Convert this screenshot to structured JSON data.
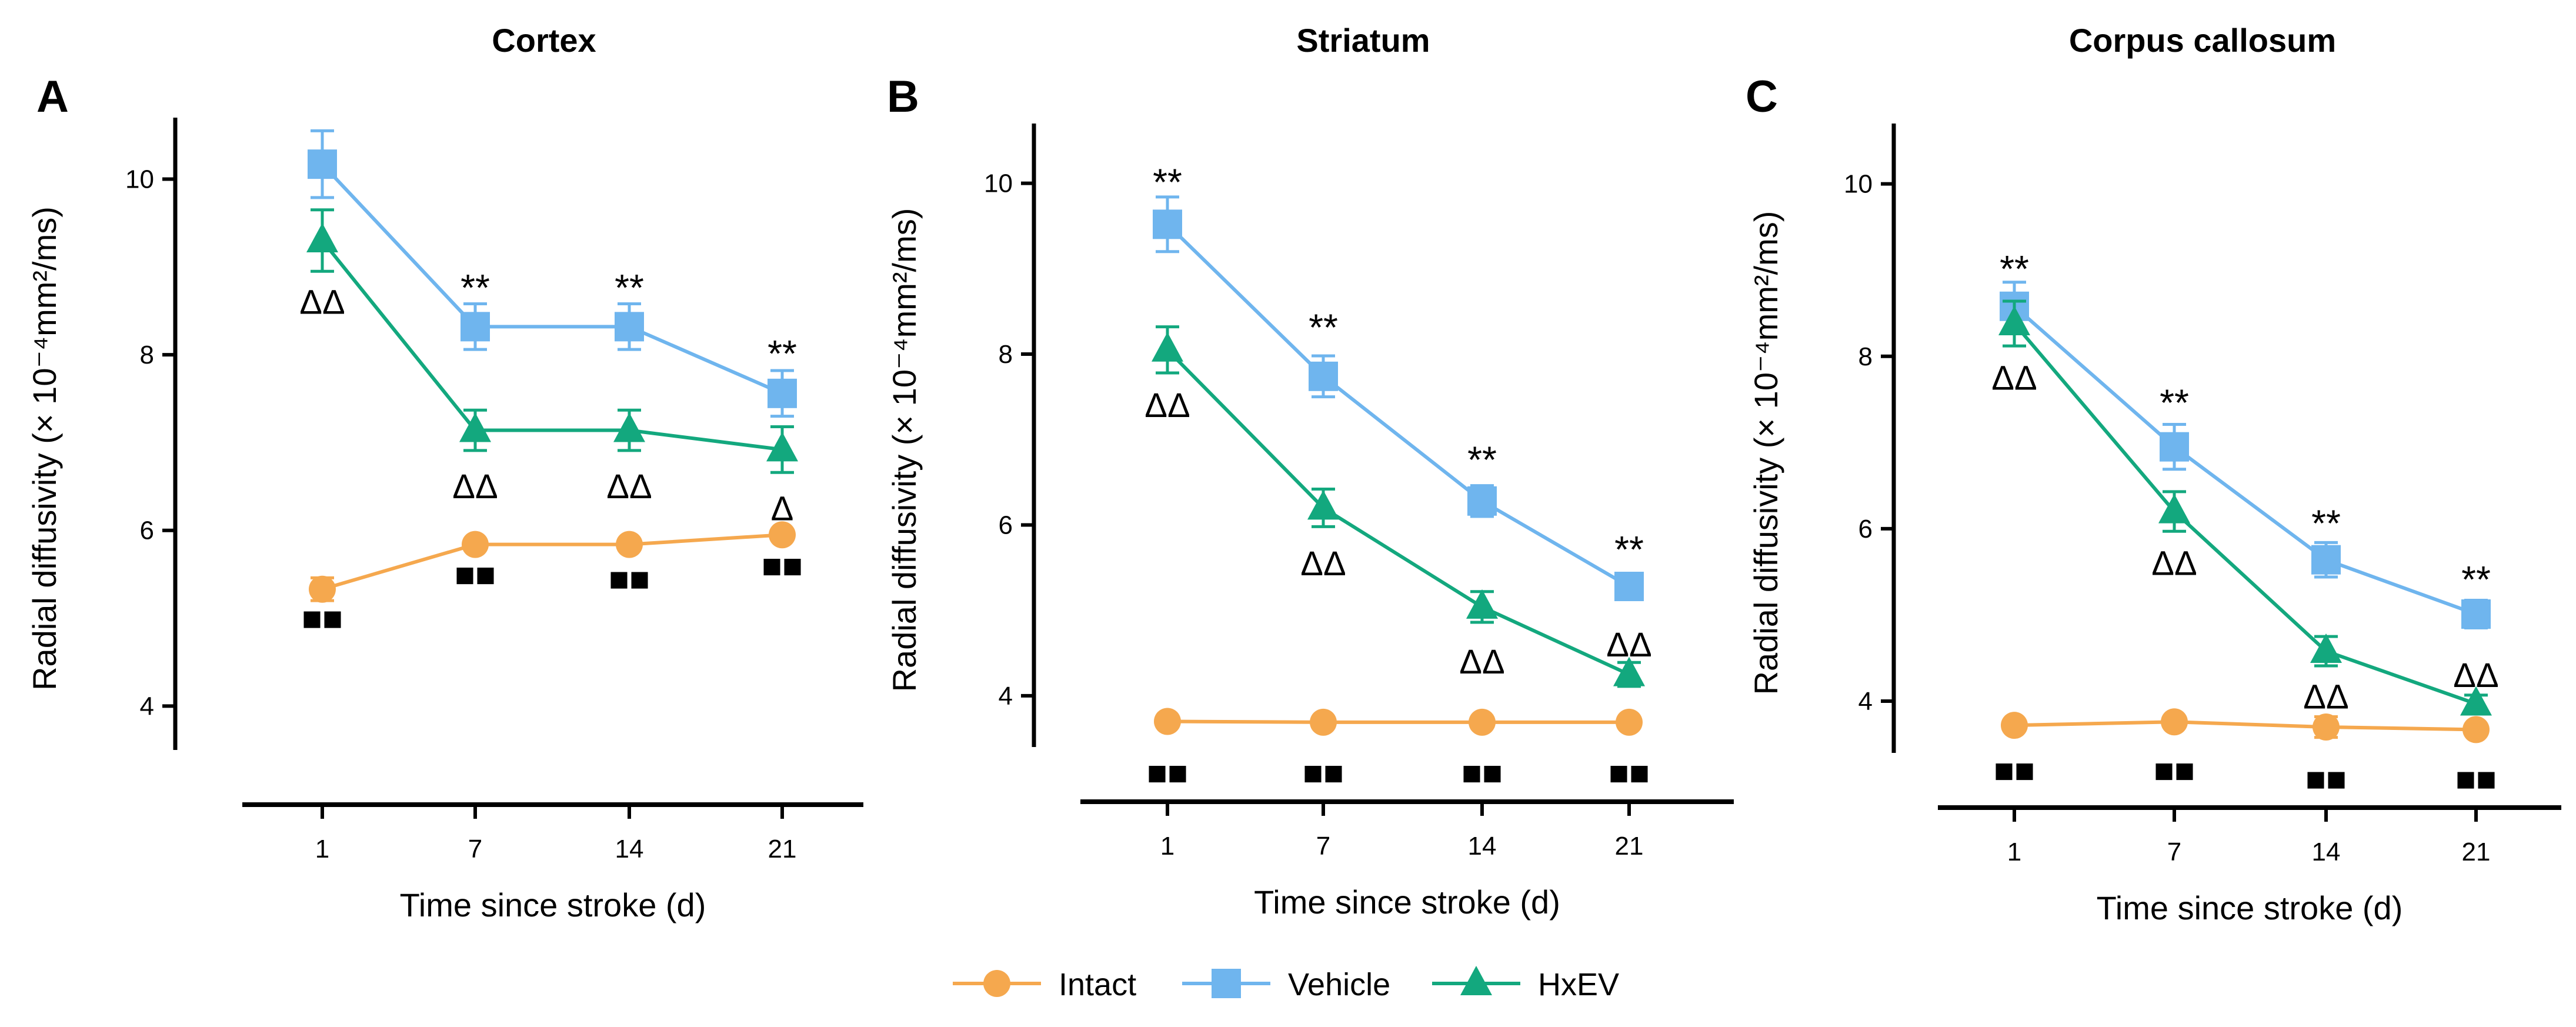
{
  "chart_data": [
    {
      "type": "line",
      "letter": "A",
      "title": "Cortex",
      "xlabel": "Time since stroke (d)",
      "ylabel": "Radial diffusivity (× 10⁻⁴mm²/ms)",
      "categories": [
        "1",
        "7",
        "14",
        "21"
      ],
      "ylim": [
        3.5,
        10.7
      ],
      "yticks": [
        4,
        6,
        8,
        10
      ],
      "series": [
        {
          "name": "Intact",
          "values": [
            5.33,
            5.84,
            5.84,
            5.95
          ],
          "errors": [
            0.13,
            0.06,
            0.06,
            0.05
          ]
        },
        {
          "name": "Vehicle",
          "values": [
            10.17,
            8.32,
            8.32,
            7.56
          ],
          "errors": [
            0.38,
            0.26,
            0.26,
            0.26
          ]
        },
        {
          "name": "HxEV",
          "values": [
            9.3,
            7.14,
            7.14,
            6.92
          ],
          "errors": [
            0.35,
            0.23,
            0.23,
            0.26
          ]
        }
      ],
      "annotations": [
        {
          "text": "**",
          "category": "7",
          "value": 8.75,
          "style": "star"
        },
        {
          "text": "**",
          "category": "14",
          "value": 8.75,
          "style": "star"
        },
        {
          "text": "**",
          "category": "21",
          "value": 8.0,
          "style": "star"
        },
        {
          "text": "ΔΔ",
          "category": "1",
          "value": 8.6,
          "style": "delta"
        },
        {
          "text": "ΔΔ",
          "category": "7",
          "value": 6.5,
          "style": "delta"
        },
        {
          "text": "ΔΔ",
          "category": "14",
          "value": 6.5,
          "style": "delta"
        },
        {
          "text": "Δ",
          "category": "21",
          "value": 6.25,
          "style": "delta"
        },
        {
          "text": "■■",
          "category": "1",
          "value": 5.0,
          "style": "square"
        },
        {
          "text": "■■",
          "category": "7",
          "value": 5.5,
          "style": "square"
        },
        {
          "text": "■■",
          "category": "14",
          "value": 5.45,
          "style": "square"
        },
        {
          "text": "■■",
          "category": "21",
          "value": 5.6,
          "style": "square"
        }
      ]
    },
    {
      "type": "line",
      "letter": "B",
      "title": "Striatum",
      "xlabel": "Time since stroke (d)",
      "ylabel": "Radial diffusivity (× 10⁻⁴mm²/ms)",
      "categories": [
        "1",
        "7",
        "14",
        "21"
      ],
      "ylim": [
        3.4,
        10.7
      ],
      "yticks": [
        4,
        6,
        8,
        10
      ],
      "series": [
        {
          "name": "Intact",
          "values": [
            3.7,
            3.69,
            3.69,
            3.69
          ],
          "errors": [
            0.04,
            0.04,
            0.04,
            0.04
          ]
        },
        {
          "name": "Vehicle",
          "values": [
            9.52,
            7.74,
            6.28,
            5.28
          ],
          "errors": [
            0.32,
            0.24,
            0.18,
            0.12
          ]
        },
        {
          "name": "HxEV",
          "values": [
            8.05,
            6.2,
            5.04,
            4.25
          ],
          "errors": [
            0.27,
            0.22,
            0.18,
            0.14
          ]
        }
      ],
      "annotations": [
        {
          "text": "**",
          "category": "1",
          "value": 10.0,
          "style": "star"
        },
        {
          "text": "**",
          "category": "7",
          "value": 8.3,
          "style": "star"
        },
        {
          "text": "**",
          "category": "14",
          "value": 6.75,
          "style": "star"
        },
        {
          "text": "**",
          "category": "21",
          "value": 5.7,
          "style": "star"
        },
        {
          "text": "ΔΔ",
          "category": "1",
          "value": 7.4,
          "style": "delta"
        },
        {
          "text": "ΔΔ",
          "category": "7",
          "value": 5.55,
          "style": "delta"
        },
        {
          "text": "ΔΔ",
          "category": "14",
          "value": 4.4,
          "style": "delta"
        },
        {
          "text": "ΔΔ",
          "category": "21",
          "value": 4.6,
          "style": "delta"
        },
        {
          "text": "■■",
          "category": "1",
          "value": 3.1,
          "style": "square"
        },
        {
          "text": "■■",
          "category": "7",
          "value": 3.1,
          "style": "square"
        },
        {
          "text": "■■",
          "category": "14",
          "value": 3.1,
          "style": "square"
        },
        {
          "text": "■■",
          "category": "21",
          "value": 3.1,
          "style": "square"
        }
      ]
    },
    {
      "type": "line",
      "letter": "C",
      "title": "Corpus callosum",
      "xlabel": "Time since stroke (d)",
      "ylabel": "Radial diffusivity (× 10⁻⁴mm²/ms)",
      "categories": [
        "1",
        "7",
        "14",
        "21"
      ],
      "ylim": [
        3.4,
        10.7
      ],
      "yticks": [
        4,
        6,
        8,
        10
      ],
      "series": [
        {
          "name": "Intact",
          "values": [
            3.72,
            3.76,
            3.7,
            3.67
          ],
          "errors": [
            0.05,
            0.06,
            0.12,
            0.06
          ]
        },
        {
          "name": "Vehicle",
          "values": [
            8.58,
            6.95,
            5.64,
            5.01
          ],
          "errors": [
            0.28,
            0.26,
            0.2,
            0.16
          ]
        },
        {
          "name": "HxEV",
          "values": [
            8.38,
            6.2,
            4.58,
            3.97
          ],
          "errors": [
            0.26,
            0.23,
            0.17,
            0.1
          ]
        }
      ],
      "annotations": [
        {
          "text": "**",
          "category": "1",
          "value": 9.0,
          "style": "star"
        },
        {
          "text": "**",
          "category": "7",
          "value": 7.45,
          "style": "star"
        },
        {
          "text": "**",
          "category": "14",
          "value": 6.05,
          "style": "star"
        },
        {
          "text": "**",
          "category": "21",
          "value": 5.4,
          "style": "star"
        },
        {
          "text": "ΔΔ",
          "category": "1",
          "value": 7.75,
          "style": "delta"
        },
        {
          "text": "ΔΔ",
          "category": "7",
          "value": 5.6,
          "style": "delta"
        },
        {
          "text": "ΔΔ",
          "category": "14",
          "value": 4.05,
          "style": "delta"
        },
        {
          "text": "ΔΔ",
          "category": "21",
          "value": 4.3,
          "style": "delta"
        },
        {
          "text": "■■",
          "category": "1",
          "value": 3.2,
          "style": "square"
        },
        {
          "text": "■■",
          "category": "7",
          "value": 3.2,
          "style": "square"
        },
        {
          "text": "■■",
          "category": "14",
          "value": 3.1,
          "style": "square"
        },
        {
          "text": "■■",
          "category": "21",
          "value": 3.1,
          "style": "square"
        }
      ]
    }
  ],
  "legend": {
    "position": "bottom-center",
    "entries": [
      {
        "name": "Intact",
        "marker": "circle",
        "color": "#f5a84e"
      },
      {
        "name": "Vehicle",
        "marker": "square",
        "color": "#6fb5ee"
      },
      {
        "name": "HxEV",
        "marker": "triangle",
        "color": "#13a87e"
      }
    ]
  },
  "colors": {
    "Intact": "#f5a84e",
    "Vehicle": "#6fb5ee",
    "HxEV": "#13a87e",
    "axis": "#000000"
  }
}
